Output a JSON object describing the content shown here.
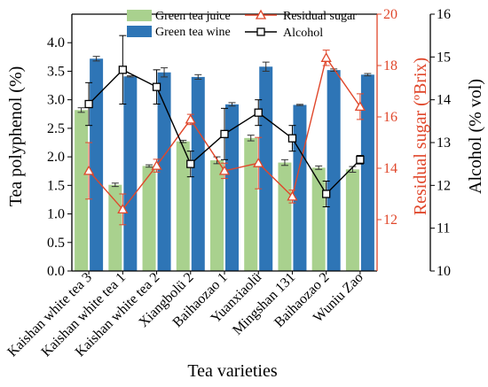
{
  "chart_data": {
    "type": "bar",
    "categories": [
      "Kaishan white tea 3",
      "Kaishan white tea 1",
      "Kaishan white tea 2",
      "Xiangbolü 2",
      "Baihaozao 1",
      "Yuanxiaolü",
      "Mingshan 131",
      "Baihaozao 2",
      "Wuniu Zao"
    ],
    "xlabel": "Tea varieties",
    "ylabel": "Tea polyphenol (%)",
    "ylabel_right1": "Residual sugar (ºBrix)",
    "ylabel_right2": "Alcohol (% vol)",
    "ylim": [
      0,
      4.5
    ],
    "yticks": [
      "0.0",
      "0.5",
      "1.0",
      "1.5",
      "2.0",
      "2.5",
      "3.0",
      "3.5",
      "4.0"
    ],
    "ylim_sugar": [
      10,
      20
    ],
    "yticks_sugar": [
      "12",
      "14",
      "16",
      "18",
      "20"
    ],
    "ylim_alcohol": [
      10,
      16
    ],
    "yticks_alcohol": [
      "10",
      "11",
      "12",
      "13",
      "14",
      "15",
      "16"
    ],
    "series": [
      {
        "name": "Green tea juice",
        "axis": "left",
        "kind": "bar",
        "color": "#a9d18e",
        "values": [
          2.82,
          1.51,
          1.84,
          2.27,
          1.94,
          2.33,
          1.9,
          1.81,
          1.78
        ],
        "errors": [
          0.04,
          0.03,
          0.02,
          0.02,
          0.06,
          0.05,
          0.05,
          0.03,
          0.05
        ]
      },
      {
        "name": "Green tea wine",
        "axis": "left",
        "kind": "bar",
        "color": "#2e75b6",
        "values": [
          3.72,
          3.41,
          3.48,
          3.4,
          2.92,
          3.58,
          2.91,
          3.52,
          3.44
        ],
        "errors": [
          0.04,
          0.01,
          0.08,
          0.04,
          0.03,
          0.08,
          0.01,
          0.02,
          0.02
        ]
      },
      {
        "name": "Residual sugar",
        "axis": "sugar",
        "kind": "line",
        "color": "#e0472b",
        "values": [
          13.9,
          12.4,
          14.1,
          15.9,
          13.9,
          14.2,
          12.9,
          18.3,
          16.4
        ],
        "errors": [
          1.1,
          0.6,
          0.25,
          0.2,
          0.3,
          1.0,
          0.25,
          0.3,
          0.5
        ]
      },
      {
        "name": "Alcohol",
        "axis": "alcohol",
        "kind": "line",
        "color": "#000000",
        "values": [
          13.9,
          14.7,
          14.3,
          12.5,
          13.2,
          13.7,
          13.1,
          11.8,
          12.6
        ],
        "errors": [
          0.5,
          0.8,
          0.4,
          0.3,
          0.6,
          0.3,
          0.3,
          0.3,
          0.1
        ]
      }
    ]
  }
}
